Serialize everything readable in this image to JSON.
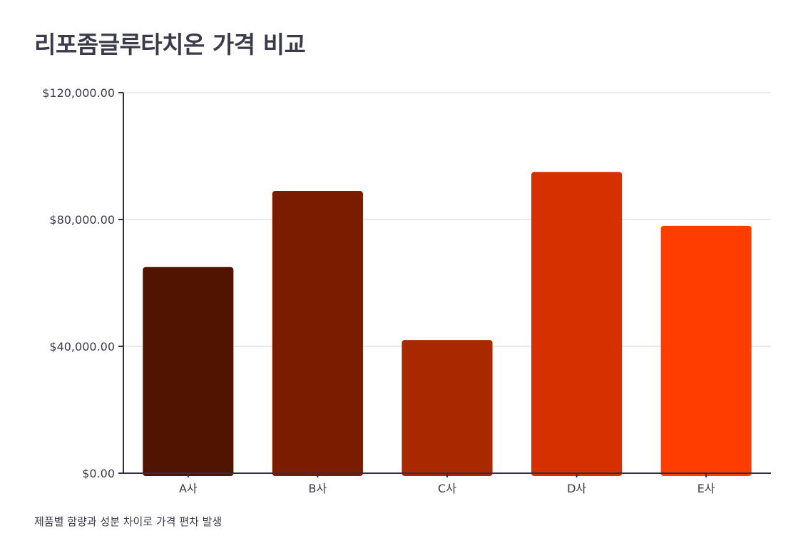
{
  "chart_data": {
    "type": "bar",
    "title": "리포좀글루타치온 가격 비교",
    "xlabel": "",
    "ylabel": "",
    "categories": [
      "A사",
      "B사",
      "C사",
      "D사",
      "E사"
    ],
    "values": [
      65000,
      89000,
      42000,
      95000,
      78000
    ],
    "colors": [
      "#511400",
      "#7a1c00",
      "#a82800",
      "#d73000",
      "#ff3d00"
    ],
    "ylim": [
      0,
      120000
    ],
    "yticks": [
      0,
      40000,
      80000,
      120000
    ],
    "ytick_labels": [
      "$0.00",
      "$40,000.00",
      "$80,000.00",
      "$120,000.00"
    ],
    "grid": true,
    "legend": "none",
    "footnote": "제품별 함량과 성분 차이로 가격 편차 발생"
  }
}
